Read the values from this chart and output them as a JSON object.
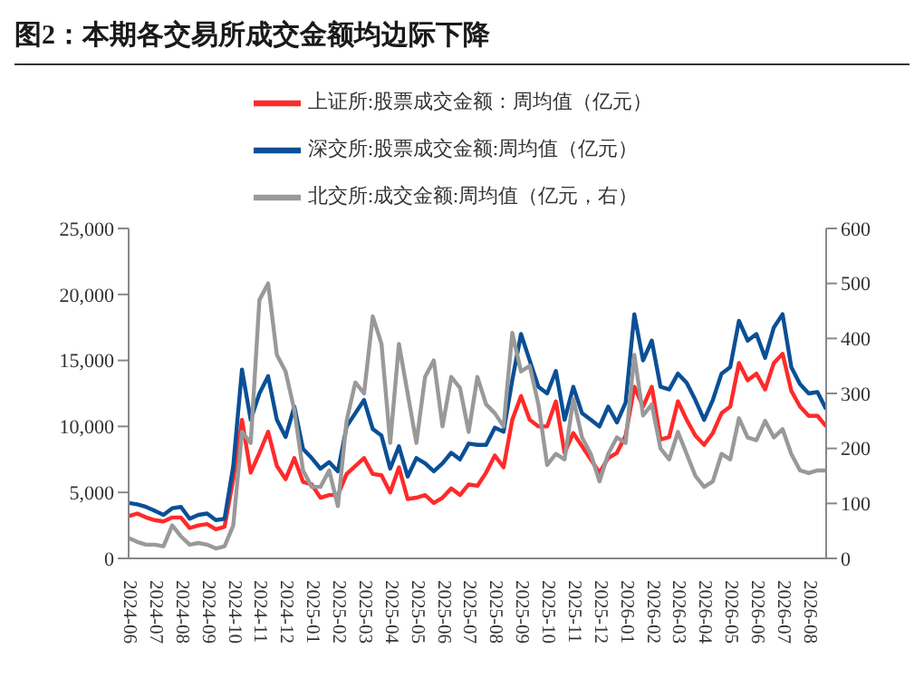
{
  "chart_data": {
    "type": "line",
    "title": "图2：本期各交易所成交金额均边际下降",
    "categories": [
      "2024-06",
      null,
      null,
      "2024-07",
      null,
      null,
      "2024-08",
      null,
      null,
      "2024-09",
      null,
      null,
      "2024-10",
      null,
      null,
      "2024-11",
      null,
      null,
      "2024-12",
      null,
      null,
      "2025-01",
      null,
      null,
      "2025-02",
      null,
      null,
      "2025-03",
      null,
      null,
      "2025-04",
      null,
      null,
      "2025-05",
      null,
      null,
      "2025-06",
      null,
      null,
      "2025-07",
      null,
      null,
      "2025-08",
      null,
      null,
      "2025-09",
      null,
      null,
      "2025-10",
      null,
      null,
      "2025-11",
      null,
      null,
      "2025-12",
      null,
      null,
      "2026-01",
      null,
      null,
      "2026-02",
      null,
      null,
      "2026-03",
      null,
      null,
      "2026-04",
      null,
      null,
      "2026-05",
      null,
      null,
      "2026-06",
      null,
      null,
      "2026-07",
      null,
      null,
      "2026-08",
      null,
      null
    ],
    "series": [
      {
        "name": "上证所:股票成交金额：周均值（亿元）",
        "color": "#ff2a2a",
        "values": [
          3200,
          3400,
          3100,
          2900,
          2800,
          3100,
          3100,
          2300,
          2500,
          2600,
          2200,
          2400,
          6000,
          10500,
          6500,
          8000,
          9600,
          7000,
          6000,
          7600,
          5800,
          5600,
          4600,
          4800,
          4800,
          6400,
          7000,
          7600,
          6400,
          6300,
          5000,
          6900,
          4500,
          4600,
          4800,
          4200,
          4600,
          5300,
          4800,
          5600,
          5500,
          6500,
          7800,
          6900,
          10500,
          12300,
          10500,
          10000,
          10000,
          11900,
          8000,
          9500,
          8500,
          7500,
          6500,
          7600,
          8000,
          9300,
          13000,
          11500,
          13000,
          9000,
          9200,
          11900,
          10500,
          9300,
          8600,
          9500,
          11000,
          11500,
          14800,
          13500,
          14000,
          12800,
          14800,
          15500,
          12700,
          11500,
          10800,
          10800,
          10000
        ]
      },
      {
        "name": "深交所:股票成交金额:周均值（亿元）",
        "color": "#0a4f96",
        "values": [
          4200,
          4100,
          3900,
          3600,
          3300,
          3800,
          3900,
          3000,
          3300,
          3400,
          2900,
          3000,
          7000,
          14300,
          10500,
          12500,
          13800,
          10500,
          9200,
          11500,
          8300,
          7600,
          6800,
          7300,
          6600,
          10000,
          11000,
          12000,
          9800,
          9300,
          6800,
          8500,
          6200,
          7600,
          7200,
          6600,
          7200,
          8000,
          7500,
          8700,
          8600,
          8600,
          9900,
          9600,
          13500,
          17000,
          15000,
          13000,
          12500,
          14200,
          10500,
          13000,
          11000,
          10500,
          10000,
          11500,
          10300,
          11800,
          18500,
          15000,
          16500,
          13000,
          12800,
          14000,
          13300,
          12000,
          10500,
          12000,
          14000,
          14500,
          18000,
          16500,
          17000,
          15200,
          17500,
          18500,
          14500,
          13200,
          12500,
          12600,
          11300
        ]
      },
      {
        "name": "北交所:成交金额:周均值（亿元，右）",
        "color": "#999999",
        "axis": "y2",
        "values": [
          37,
          30,
          25,
          25,
          22,
          60,
          40,
          25,
          28,
          25,
          18,
          22,
          60,
          230,
          210,
          470,
          500,
          370,
          340,
          270,
          160,
          130,
          130,
          160,
          95,
          250,
          320,
          300,
          440,
          390,
          210,
          390,
          300,
          210,
          330,
          360,
          240,
          330,
          310,
          230,
          330,
          280,
          264,
          240,
          410,
          340,
          350,
          280,
          170,
          190,
          180,
          290,
          220,
          190,
          140,
          190,
          220,
          210,
          370,
          260,
          280,
          200,
          180,
          230,
          190,
          150,
          130,
          140,
          190,
          180,
          255,
          220,
          215,
          250,
          220,
          235,
          190,
          160,
          155,
          160,
          160
        ]
      }
    ],
    "ylim": [
      0,
      25000
    ],
    "yticks": [
      {
        "value": 0,
        "label": "0"
      },
      {
        "value": 5000,
        "label": "5,000"
      },
      {
        "value": 10000,
        "label": "10,000"
      },
      {
        "value": 15000,
        "label": "15,000"
      },
      {
        "value": 20000,
        "label": "20,000"
      },
      {
        "value": 25000,
        "label": "25,000"
      }
    ],
    "y2lim": [
      0,
      600
    ],
    "y2ticks": [
      0,
      100,
      200,
      300,
      400,
      500,
      600
    ],
    "legend": "top",
    "marker": "none",
    "line_style": "solid"
  }
}
